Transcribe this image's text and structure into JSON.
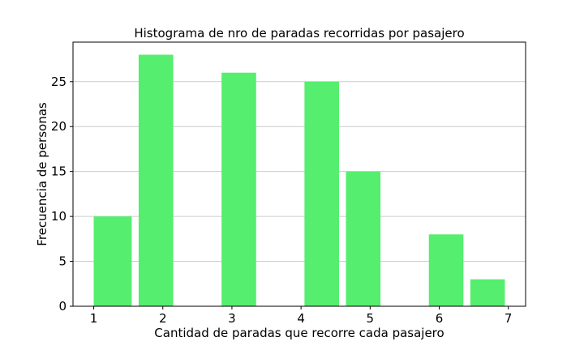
{
  "chart_data": {
    "type": "bar",
    "title": "Histograma de nro de paradas recorridas por pasajero",
    "xlabel": "Cantidad de paradas que recorre cada pasajero",
    "ylabel": "Frecuencia de personas",
    "bars": [
      {
        "x_start": 1.0,
        "x_end": 1.55,
        "value": 10
      },
      {
        "x_start": 1.65,
        "x_end": 2.15,
        "value": 28
      },
      {
        "x_start": 2.85,
        "x_end": 3.35,
        "value": 26
      },
      {
        "x_start": 4.05,
        "x_end": 4.55,
        "value": 25
      },
      {
        "x_start": 4.65,
        "x_end": 5.15,
        "value": 15
      },
      {
        "x_start": 5.85,
        "x_end": 6.35,
        "value": 8
      },
      {
        "x_start": 6.45,
        "x_end": 6.95,
        "value": 3
      }
    ],
    "xticks": [
      1,
      2,
      3,
      4,
      5,
      6,
      7
    ],
    "yticks": [
      0,
      5,
      10,
      15,
      20,
      25
    ],
    "xlim": [
      0.7,
      7.25
    ],
    "ylim": [
      0,
      29.4
    ],
    "grid": "horizontal",
    "bar_color": "#55ee6e"
  }
}
